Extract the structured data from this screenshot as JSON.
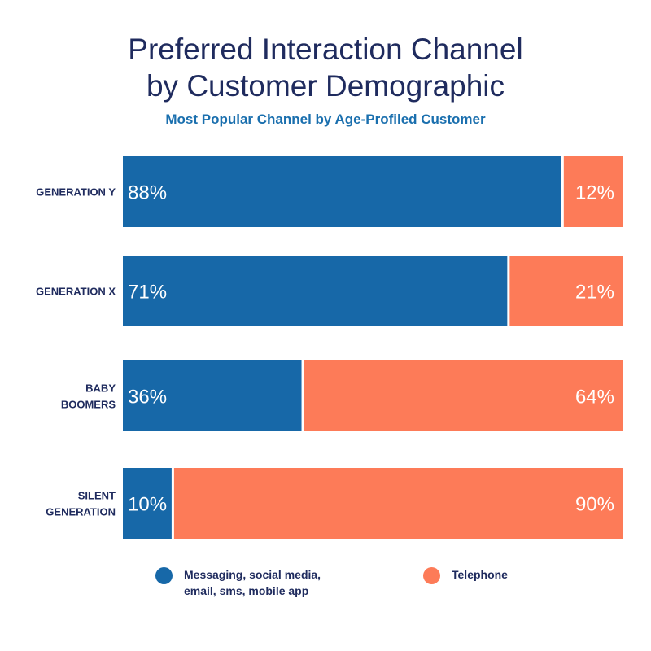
{
  "colors": {
    "messaging": "#1768a8",
    "telephone": "#fd7b58",
    "title": "#1f2b5e",
    "subtitle": "#1a6fae"
  },
  "chart_data": {
    "type": "bar",
    "orientation": "horizontal",
    "stacked": true,
    "title": "Preferred Interaction Channel\nby Customer Demographic",
    "subtitle": "Most Popular Channel by Age-Profiled Customer",
    "categories": [
      "GENERATION Y",
      "GENERATION X",
      "BABY\nBOOMERS",
      "SILENT\nGENERATION"
    ],
    "series": [
      {
        "name": "Messaging, social media,\nemail, sms, mobile app",
        "values": [
          88,
          71,
          36,
          10
        ]
      },
      {
        "name": "Telephone",
        "values": [
          12,
          21,
          64,
          90
        ]
      }
    ],
    "value_labels": [
      [
        "88%",
        "71%",
        "36%",
        "10%"
      ],
      [
        "12%",
        "21%",
        "64%",
        "90%"
      ]
    ],
    "xlim": [
      0,
      100
    ],
    "grid": false,
    "legend_position": "bottom"
  }
}
